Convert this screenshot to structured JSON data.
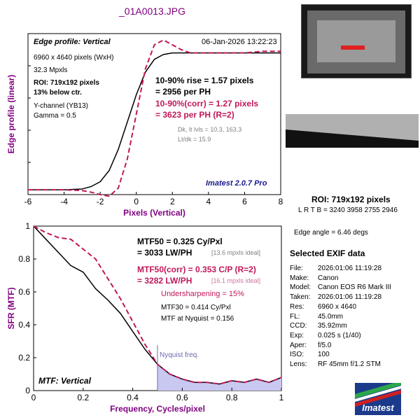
{
  "file_title": "_01A0013.JPG",
  "colors": {
    "measured": "#000000",
    "corrected": "#c0185a",
    "title": "#800080",
    "nyquist_fill": "#c8c8f0",
    "ideal_note": "#808080"
  },
  "top_panel": {
    "panel_label": "Edge profile: Vertical",
    "datetime": "06-Jan-2026 13:22:23",
    "image_size": "6960 x 4640 pixels (WxH)",
    "mpxls": "32.3 Mpxls",
    "roi": "ROI: 719x192 pixels",
    "below_ctr": "13% below ctr.",
    "channel": "Y-channel  (YB13)",
    "gamma": "Gamma = 0.5",
    "rise_line1": "10-90% rise = 1.57 pixels",
    "rise_line2": "= 2956 per PH",
    "corr_line1": "10-90%(corr) = 1.27 pixels",
    "corr_line2": "= 3623 per PH  (R=2)",
    "dk_line": "Dk, lt lvls = 10.3, 163.3",
    "ltdk_line": "Lt/dk = 15.9",
    "version": "Imatest 2.0.7 Pro"
  },
  "bottom_panel": {
    "panel_label": "MTF: Vertical",
    "mtf50_line1": "MTF50 = 0.325 Cy/Pxl",
    "mtf50_line2": "= 3033 LW/PH",
    "mtf50_ideal": "[13.6 mpxls ideal]",
    "corr_line1": "MTF50(corr) = 0.353 C/P  (R=2)",
    "corr_line2": "= 3282 LW/PH",
    "corr_ideal": "[16.1 mpxls ideal]",
    "undersharpening": "Undersharpening = 15%",
    "mtf30": "MTF30 = 0.414 Cy/Pxl",
    "mtf_nyquist": "MTF at Nyquist = 0.156",
    "nyquist_label": "Nyquist freq."
  },
  "right_panel": {
    "roi_title": "ROI: 719x192 pixels",
    "lrtb": "L R  T B = 3240 3958  2755 2946",
    "edge_angle": "Edge angle = 6.46 degs",
    "exif_title": "Selected EXIF data",
    "exif": [
      {
        "key": "File:",
        "value": "2026:01:06 11:19:28"
      },
      {
        "key": "Make:",
        "value": "Canon"
      },
      {
        "key": "Model:",
        "value": "Canon EOS R6 Mark III"
      },
      {
        "key": "Taken:",
        "value": "2026:01:06 11:19:28"
      },
      {
        "key": "Res:",
        "value": "6960 x 4640"
      },
      {
        "key": "FL:",
        "value": "45.0mm"
      },
      {
        "key": "CCD:",
        "value": "35.92mm"
      },
      {
        "key": "Exp:",
        "value": "0.025 s  (1/40)"
      },
      {
        "key": "Aper:",
        "value": "f/5.0"
      },
      {
        "key": "ISO:",
        "value": "100"
      },
      {
        "key": "Lens:",
        "value": "RF 45mm f/1.2 STM"
      }
    ],
    "logo_text": "Imatest"
  },
  "chart_data": [
    {
      "type": "line",
      "title": "",
      "xlabel": "Pixels (Vertical)",
      "ylabel": "Edge profile (linear)",
      "xlim": [
        -6,
        8
      ],
      "ylim": [
        0,
        1
      ],
      "xticks": [
        -6,
        -4,
        -2,
        0,
        2,
        4,
        6,
        8
      ],
      "series": [
        {
          "role": "measured",
          "x": [
            -6,
            -5,
            -4,
            -3,
            -2.5,
            -2,
            -1.5,
            -1,
            -0.5,
            0,
            0.5,
            1,
            1.5,
            2,
            3,
            4,
            5,
            6,
            7,
            8
          ],
          "y": [
            0.03,
            0.03,
            0.03,
            0.035,
            0.05,
            0.08,
            0.15,
            0.28,
            0.45,
            0.62,
            0.76,
            0.84,
            0.87,
            0.88,
            0.88,
            0.88,
            0.88,
            0.88,
            0.88,
            0.88
          ]
        },
        {
          "role": "corrected",
          "x": [
            -6,
            -4,
            -3,
            -2.5,
            -2,
            -1.5,
            -1,
            -0.5,
            0,
            0.5,
            1,
            1.5,
            2,
            2.5,
            3,
            4,
            5,
            6,
            7,
            8
          ],
          "y": [
            0.03,
            0.03,
            0.025,
            0.015,
            0.0,
            -0.01,
            0.04,
            0.22,
            0.5,
            0.78,
            0.93,
            0.96,
            0.93,
            0.9,
            0.88,
            0.88,
            0.88,
            0.88,
            0.89,
            0.89
          ]
        }
      ]
    },
    {
      "type": "line",
      "title": "",
      "xlabel": "Frequency, Cycles/pixel",
      "ylabel": "SFR (MTF)",
      "xlim": [
        0,
        1
      ],
      "ylim": [
        0,
        1
      ],
      "xticks": [
        0,
        0.2,
        0.4,
        0.6,
        0.8,
        1
      ],
      "yticks": [
        0,
        0.2,
        0.4,
        0.6,
        0.8,
        1
      ],
      "nyquist": 0.5,
      "series": [
        {
          "role": "measured",
          "x": [
            0,
            0.05,
            0.1,
            0.15,
            0.2,
            0.25,
            0.3,
            0.35,
            0.4,
            0.45,
            0.5,
            0.55,
            0.6,
            0.65,
            0.7,
            0.75,
            0.8,
            0.85,
            0.9,
            0.95,
            1
          ],
          "y": [
            1.0,
            0.92,
            0.84,
            0.76,
            0.72,
            0.62,
            0.55,
            0.47,
            0.36,
            0.25,
            0.16,
            0.1,
            0.07,
            0.05,
            0.05,
            0.04,
            0.06,
            0.05,
            0.07,
            0.05,
            0.08
          ]
        },
        {
          "role": "corrected",
          "x": [
            0,
            0.05,
            0.1,
            0.15,
            0.2,
            0.25,
            0.3,
            0.35,
            0.4,
            0.45,
            0.5,
            0.55,
            0.6,
            0.65,
            0.7,
            0.75,
            0.8,
            0.85,
            0.9,
            0.95,
            1
          ],
          "y": [
            1.0,
            0.96,
            0.93,
            0.92,
            0.86,
            0.8,
            0.68,
            0.56,
            0.42,
            0.28,
            0.16,
            0.1,
            0.07,
            0.05,
            0.05,
            0.04,
            0.06,
            0.05,
            0.07,
            0.05,
            0.08
          ]
        }
      ]
    }
  ]
}
